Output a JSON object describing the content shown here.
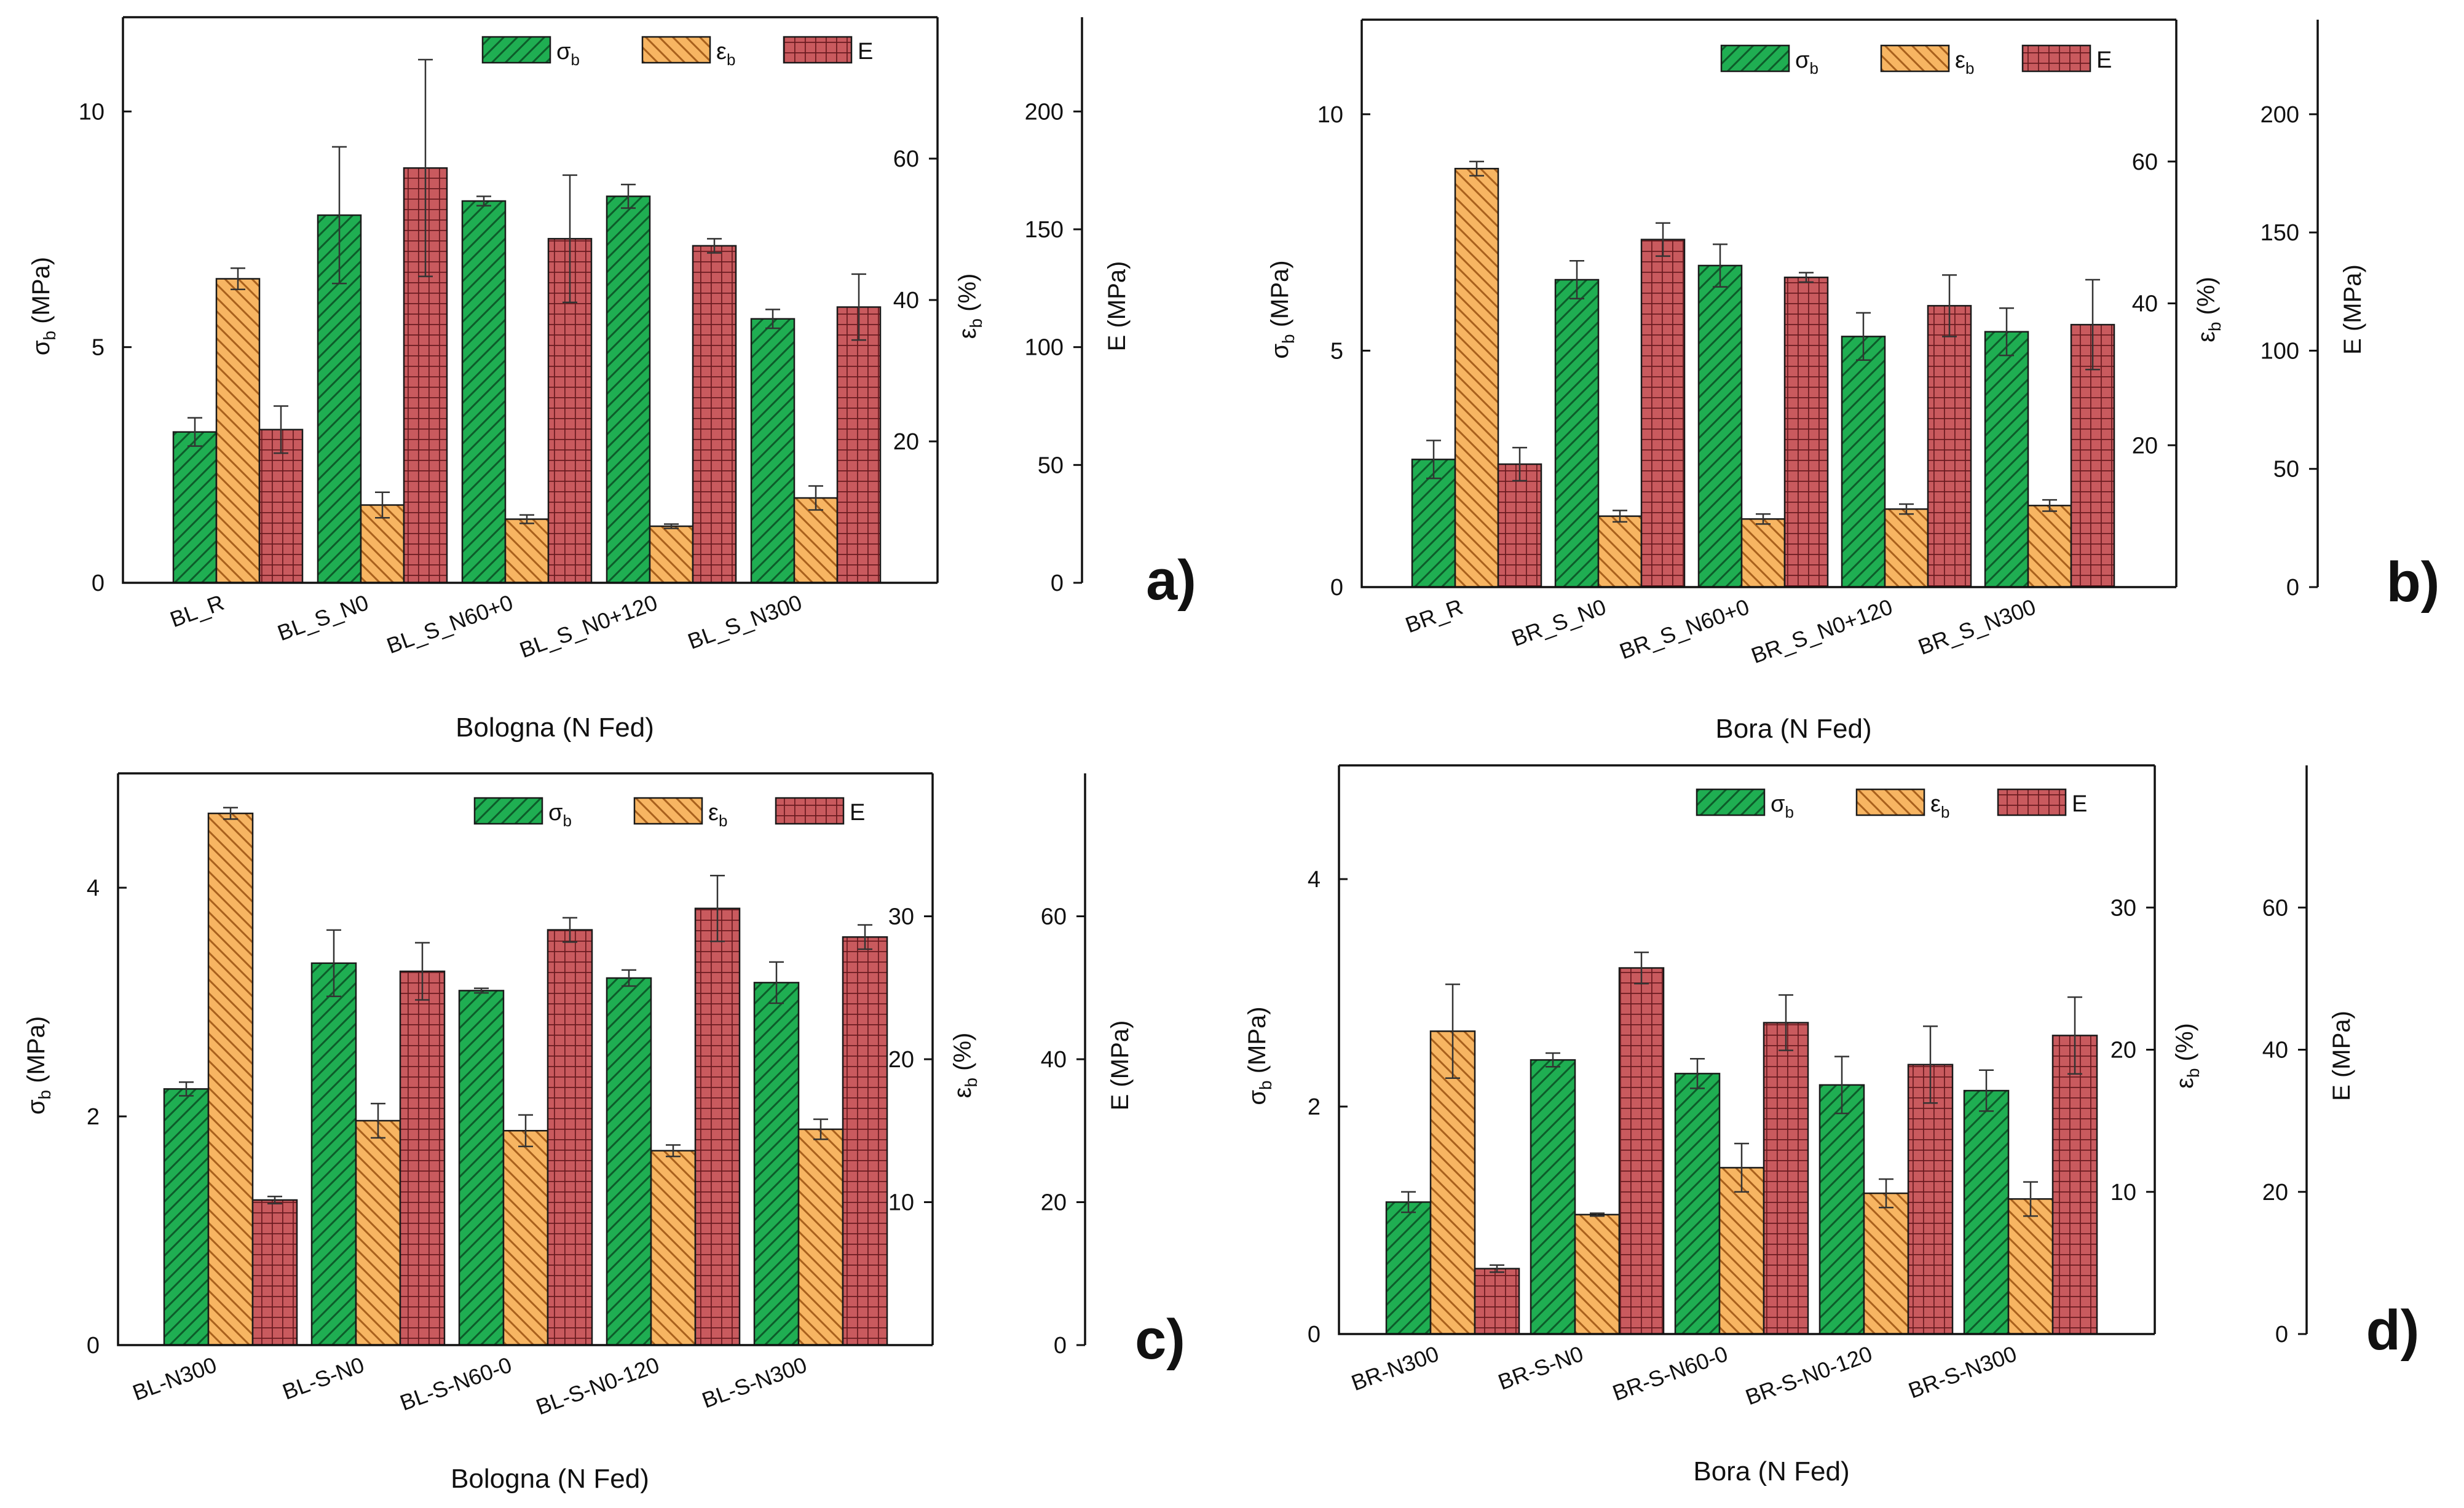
{
  "colors": {
    "sigma_b": "#1fae52",
    "eps_b": "#f7b562",
    "E": "#c95a5e",
    "sigma_b_hatch": "#0d5c2a",
    "eps_b_hatch": "#a8601c",
    "E_hatch": "#6a1b20"
  },
  "chart_data": [
    {
      "type": "bar",
      "panel_label": "a)",
      "xlabel": "Bologna (N Fed)",
      "categories": [
        "BL_R",
        "BL_S_N0",
        "BL_S_N60+0",
        "BL_S_N0+120",
        "BL_S_N300"
      ],
      "legend": [
        "σb",
        "εb",
        "E"
      ],
      "axes": {
        "left": {
          "label": "σb (MPa)",
          "label_main": "σ",
          "label_sub": "b",
          "label_rest": " (MPa)",
          "range": [
            0,
            12
          ],
          "ticks": [
            "0",
            "5",
            "10"
          ],
          "tick_values": [
            0,
            5,
            10
          ]
        },
        "mid": {
          "label": "εb (%)",
          "label_main": "ε",
          "label_sub": "b",
          "label_rest": " (%)",
          "range": [
            0,
            80
          ],
          "ticks": [
            "20",
            "40",
            "60"
          ],
          "tick_values": [
            20,
            40,
            60
          ]
        },
        "right": {
          "label": "E (MPa)",
          "range": [
            0,
            240
          ],
          "ticks": [
            "0",
            "50",
            "100",
            "150",
            "200"
          ],
          "tick_values": [
            0,
            50,
            100,
            150,
            200
          ]
        }
      },
      "series": [
        {
          "name": "σb",
          "axis": "left",
          "values": [
            3.2,
            7.8,
            8.1,
            8.2,
            5.6
          ],
          "errors": [
            0.3,
            1.45,
            0.1,
            0.25,
            0.2
          ]
        },
        {
          "name": "εb",
          "axis": "mid",
          "values": [
            43,
            11,
            9,
            8,
            12
          ],
          "errors": [
            1.5,
            1.8,
            0.6,
            0.3,
            1.7
          ]
        },
        {
          "name": "E",
          "axis": "right",
          "values": [
            65,
            176,
            146,
            143,
            117
          ],
          "errors": [
            10,
            46,
            27,
            3,
            14
          ]
        }
      ]
    },
    {
      "type": "bar",
      "panel_label": "b)",
      "xlabel": "Bora (N Fed)",
      "categories": [
        "BR_R",
        "BR_S_N0",
        "BR_S_N60+0",
        "BR_S_N0+120",
        "BR_S_N300"
      ],
      "legend": [
        "σb",
        "εb",
        "E"
      ],
      "axes": {
        "left": {
          "label": "σb (MPa)",
          "label_main": "σ",
          "label_sub": "b",
          "label_rest": " (MPa)",
          "range": [
            0,
            12
          ],
          "ticks": [
            "0",
            "5",
            "10"
          ],
          "tick_values": [
            0,
            5,
            10
          ]
        },
        "mid": {
          "label": "εb (%)",
          "label_main": "ε",
          "label_sub": "b",
          "label_rest": " (%)",
          "range": [
            0,
            80
          ],
          "ticks": [
            "20",
            "40",
            "60"
          ],
          "tick_values": [
            20,
            40,
            60
          ]
        },
        "right": {
          "label": "E (MPa)",
          "range": [
            0,
            240
          ],
          "ticks": [
            "0",
            "50",
            "100",
            "150",
            "200"
          ],
          "tick_values": [
            0,
            50,
            100,
            150,
            200
          ]
        }
      },
      "series": [
        {
          "name": "σb",
          "axis": "left",
          "values": [
            2.7,
            6.5,
            6.8,
            5.3,
            5.4
          ],
          "errors": [
            0.4,
            0.4,
            0.45,
            0.5,
            0.5
          ]
        },
        {
          "name": "εb",
          "axis": "mid",
          "values": [
            59,
            10,
            9.6,
            11,
            11.5
          ],
          "errors": [
            1.0,
            0.8,
            0.7,
            0.7,
            0.8
          ]
        },
        {
          "name": "E",
          "axis": "right",
          "values": [
            52,
            147,
            131,
            119,
            111
          ],
          "errors": [
            7,
            7,
            2,
            13,
            19
          ]
        }
      ]
    },
    {
      "type": "bar",
      "panel_label": "c)",
      "xlabel": "Bologna (N Fed)",
      "categories": [
        "BL-N300",
        "BL-S-N0",
        "BL-S-N60-0",
        "BL-S-N0-120",
        "BL-S-N300"
      ],
      "legend": [
        "σb",
        "εb",
        "E"
      ],
      "axes": {
        "left": {
          "label": "σb (MPa)",
          "label_main": "σ",
          "label_sub": "b",
          "label_rest": " (MPa)",
          "range": [
            0,
            5
          ],
          "ticks": [
            "0",
            "2",
            "4"
          ],
          "tick_values": [
            0,
            2,
            4
          ]
        },
        "mid": {
          "label": "εb (%)",
          "label_main": "ε",
          "label_sub": "b",
          "label_rest": " (%)",
          "range": [
            0,
            40
          ],
          "ticks": [
            "10",
            "20",
            "30"
          ],
          "tick_values": [
            10,
            20,
            30
          ]
        },
        "right": {
          "label": "E (MPa)",
          "range": [
            0,
            80
          ],
          "ticks": [
            "0",
            "20",
            "40",
            "60"
          ],
          "tick_values": [
            0,
            20,
            40,
            60
          ]
        }
      },
      "series": [
        {
          "name": "σb",
          "axis": "left",
          "values": [
            2.24,
            3.34,
            3.1,
            3.21,
            3.17
          ],
          "errors": [
            0.06,
            0.29,
            0.02,
            0.07,
            0.18
          ]
        },
        {
          "name": "εb",
          "axis": "mid",
          "values": [
            37.2,
            15.7,
            15.0,
            13.6,
            15.1
          ],
          "errors": [
            0.4,
            1.2,
            1.1,
            0.4,
            0.7
          ]
        },
        {
          "name": "E",
          "axis": "right",
          "values": [
            20.3,
            52.3,
            58.1,
            61.1,
            57.1
          ],
          "errors": [
            0.5,
            4.0,
            1.7,
            4.6,
            1.7
          ]
        }
      ]
    },
    {
      "type": "bar",
      "panel_label": "d)",
      "xlabel": "Bora (N Fed)",
      "categories": [
        "BR-N300",
        "BR-S-N0",
        "BR-S-N60-0",
        "BR-S-N0-120",
        "BR-S-N300"
      ],
      "legend": [
        "σb",
        "εb",
        "E"
      ],
      "axes": {
        "left": {
          "label": "σb (MPa)",
          "label_main": "σ",
          "label_sub": "b",
          "label_rest": " (MPa)",
          "range": [
            0,
            5
          ],
          "ticks": [
            "0",
            "2",
            "4"
          ],
          "tick_values": [
            0,
            2,
            4
          ]
        },
        "mid": {
          "label": "εb (%)",
          "label_main": "ε",
          "label_sub": "b",
          "label_rest": " (%)",
          "range": [
            0,
            40
          ],
          "ticks": [
            "10",
            "20",
            "30"
          ],
          "tick_values": [
            10,
            20,
            30
          ]
        },
        "right": {
          "label": "E (MPa)",
          "range": [
            0,
            80
          ],
          "ticks": [
            "0",
            "20",
            "40",
            "60"
          ],
          "tick_values": [
            0,
            20,
            40,
            60
          ]
        }
      },
      "series": [
        {
          "name": "σb",
          "axis": "left",
          "values": [
            1.16,
            2.41,
            2.29,
            2.19,
            2.14
          ],
          "errors": [
            0.09,
            0.06,
            0.13,
            0.25,
            0.18
          ]
        },
        {
          "name": "εb",
          "axis": "mid",
          "values": [
            21.3,
            8.4,
            11.7,
            9.9,
            9.5
          ],
          "errors": [
            3.3,
            0.1,
            1.7,
            1.0,
            1.2
          ]
        },
        {
          "name": "E",
          "axis": "right",
          "values": [
            9.2,
            51.5,
            43.8,
            37.9,
            42.0
          ],
          "errors": [
            0.5,
            2.2,
            3.9,
            5.4,
            5.4
          ]
        }
      ]
    }
  ]
}
